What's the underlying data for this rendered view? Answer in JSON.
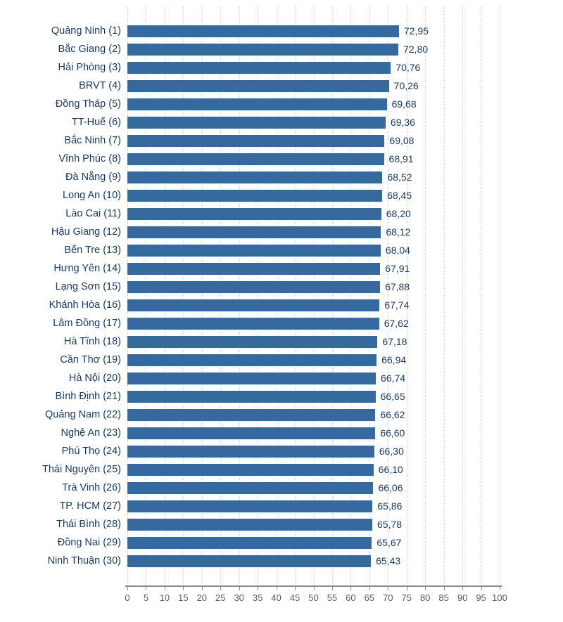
{
  "chart_data": {
    "type": "bar",
    "orientation": "horizontal",
    "title": "",
    "xlabel": "",
    "ylabel": "",
    "xlim": [
      0,
      100
    ],
    "xticks": [
      0,
      5,
      10,
      15,
      20,
      25,
      30,
      35,
      40,
      45,
      50,
      55,
      60,
      65,
      70,
      75,
      80,
      85,
      90,
      95,
      100
    ],
    "grid": true,
    "legend": false,
    "decimal_separator": ",",
    "categories": [
      "Quảng Ninh (1)",
      "Bắc Giang (2)",
      "Hải Phòng (3)",
      "BRVT (4)",
      "Đồng Tháp (5)",
      "TT-Huế (6)",
      "Bắc Ninh (7)",
      "Vĩnh Phúc (8)",
      "Đà Nẵng (9)",
      "Long An (10)",
      "Lào Cai (11)",
      "Hậu Giang (12)",
      "Bến Tre (13)",
      "Hưng Yên (14)",
      "Lạng Sơn (15)",
      "Khánh Hòa (16)",
      "Lâm Đồng (17)",
      "Hà Tĩnh (18)",
      "Cần Thơ (19)",
      "Hà Nội (20)",
      "Bình Định (21)",
      "Quảng Nam (22)",
      "Nghệ An (23)",
      "Phú Thọ (24)",
      "Thái Nguyên (25)",
      "Trà Vinh (26)",
      "TP. HCM (27)",
      "Thái Bình (28)",
      "Đồng Nai (29)",
      "Ninh Thuận (30)"
    ],
    "values": [
      72.95,
      72.8,
      70.76,
      70.26,
      69.68,
      69.36,
      69.08,
      68.91,
      68.52,
      68.45,
      68.2,
      68.12,
      68.04,
      67.91,
      67.88,
      67.74,
      67.62,
      67.18,
      66.94,
      66.74,
      66.65,
      66.62,
      66.6,
      66.3,
      66.1,
      66.06,
      65.86,
      65.78,
      65.67,
      65.43
    ],
    "value_labels": [
      "72,95",
      "72,80",
      "70,76",
      "70,26",
      "69,68",
      "69,36",
      "69,08",
      "68,91",
      "68,52",
      "68,45",
      "68,20",
      "68,12",
      "68,04",
      "67,91",
      "67,88",
      "67,74",
      "67,62",
      "67,18",
      "66,94",
      "66,74",
      "66,65",
      "66,62",
      "66,60",
      "66,30",
      "66,10",
      "66,06",
      "65,86",
      "65,78",
      "65,67",
      "65,43"
    ]
  },
  "style": {
    "bar_color": "#36699e",
    "category_label_color": "#17375e",
    "value_label_color": "#17375e",
    "tick_label_color": "#595959",
    "gridline_color": "#d8d8d8",
    "axis_color": "#8c8c8c",
    "background": "#ffffff"
  }
}
